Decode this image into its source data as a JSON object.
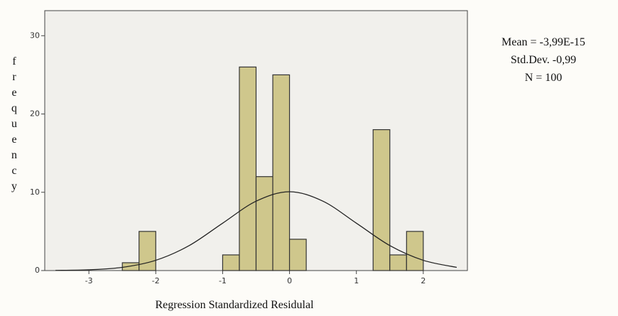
{
  "chart_data": {
    "type": "histogram",
    "x_label": "Regression Standardized Residulal",
    "y_label": "frequency",
    "stats": [
      "Mean = -3,99E-15",
      "Std.Dev. -0,99",
      "N = 100"
    ],
    "bins": [
      -2.5,
      -2.25,
      -2,
      -1.75,
      -1.5,
      -1.25,
      -1,
      -0.75,
      -0.5,
      -0.25,
      0,
      0.25,
      0.5,
      0.75,
      1,
      1.25,
      1.5,
      1.75,
      2
    ],
    "values": [
      1,
      5,
      0,
      0,
      0,
      0,
      2,
      26,
      12,
      25,
      4,
      0,
      0,
      0,
      0,
      18,
      2,
      5
    ],
    "color": "#cfc78c",
    "curve": {
      "x": [
        -3.5,
        -3,
        -2.5,
        -2,
        -1.5,
        -1,
        -0.5,
        0,
        0.5,
        1,
        1.5,
        2,
        2.5
      ],
      "y": [
        0.02,
        0.1,
        0.41,
        1.31,
        3.19,
        6.05,
        8.86,
        10.07,
        8.86,
        6.05,
        3.19,
        1.31,
        0.41
      ],
      "color": "#222"
    },
    "xlim": [
      -3.66,
      2.66
    ],
    "ylim": [
      0,
      33.2
    ],
    "xticks": [
      -3,
      -2,
      -1,
      0,
      1,
      2
    ],
    "yticks": [
      0,
      10,
      20,
      30
    ]
  }
}
